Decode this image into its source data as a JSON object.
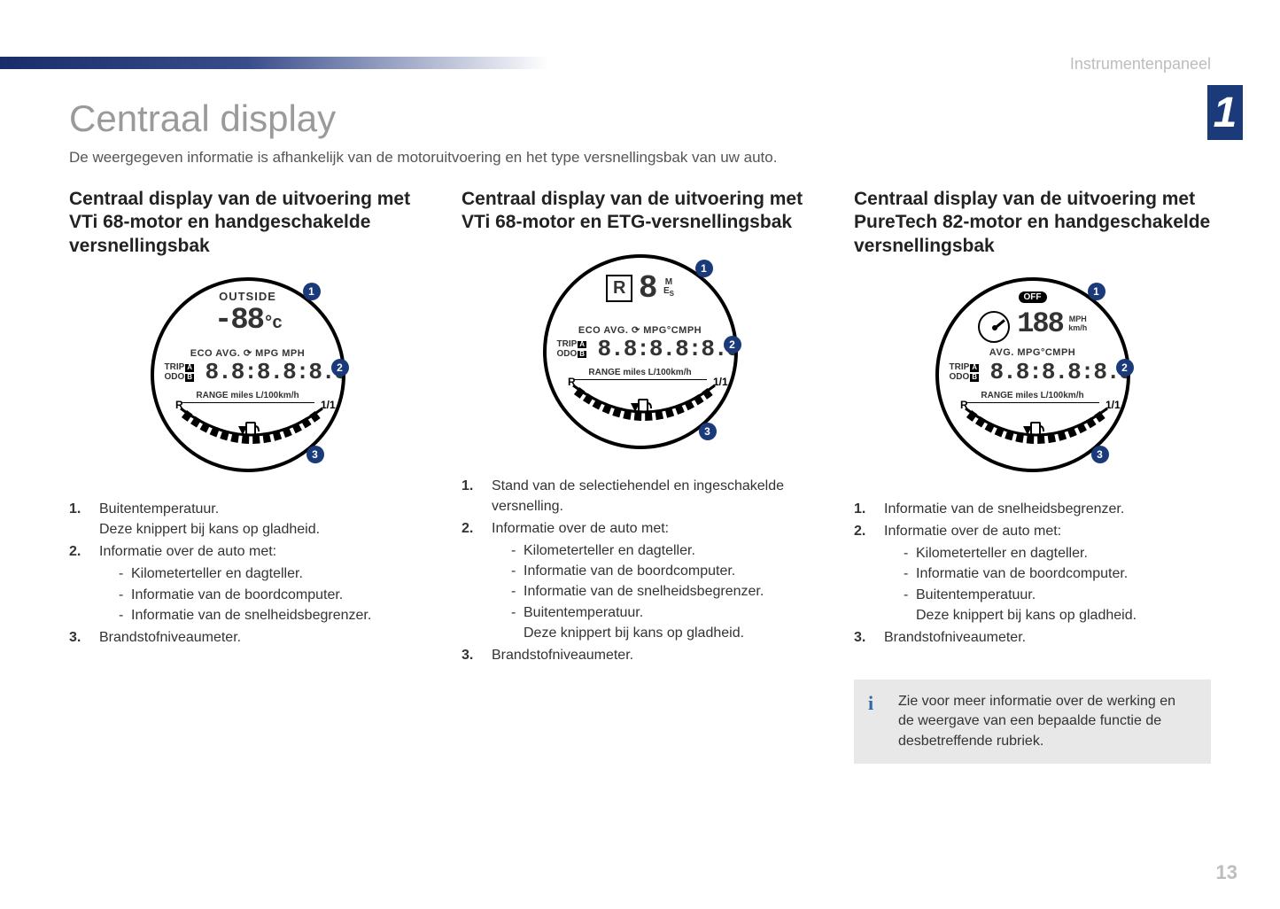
{
  "header": {
    "section_label": "Instrumentenpaneel",
    "chapter_number": "1",
    "footer_page": "13"
  },
  "title": "Centraal display",
  "intro": "De weergegeven informatie is afhankelijk van de motoruitvoering en het type versnellingsbak van uw auto.",
  "columns": [
    {
      "title": "Centraal display van de uitvoering met VTi 68-motor en handgeschakelde versnellingsbak",
      "gauge": {
        "variant": "vti_manual",
        "top_label": "OUTSIDE",
        "temp": "-88",
        "temp_unit": "°c",
        "row2": "ECO AVG. ⟳ MPG MPH",
        "trip_a": "TRIP",
        "trip_a_box": "A",
        "odo_b": "ODO",
        "odo_b_box": "B",
        "digits": "8.8:8.8:8.8",
        "range": "RANGE  miles L/100km/h",
        "fuel_left": "R",
        "fuel_right": "1/1",
        "callouts": [
          "1",
          "2",
          "3"
        ]
      },
      "items": [
        {
          "text": "Buitentemperatuur.",
          "extra": "Deze knippert bij kans op gladheid."
        },
        {
          "text": "Informatie over de auto met:",
          "sub": [
            "Kilometerteller en dagteller.",
            "Informatie van de boordcomputer.",
            "Informatie van de snelheidsbegrenzer."
          ]
        },
        {
          "text": "Brandstofniveaumeter."
        }
      ]
    },
    {
      "title": "Centraal display van de uitvoering met VTi 68-motor en ETG-versnellingsbak",
      "gauge": {
        "variant": "vti_etg",
        "r": "R",
        "lcd": "8",
        "mes": "M\nE\nS",
        "row2": "ECO AVG. ⟳ MPG°CMPH",
        "trip_a": "TRIP",
        "trip_a_box": "A",
        "odo_b": "ODO",
        "odo_b_box": "B",
        "digits": "8.8:8.8:8.8",
        "range": "RANGE  miles L/100km/h",
        "fuel_left": "R",
        "fuel_right": "1/1",
        "callouts": [
          "1",
          "2",
          "3"
        ]
      },
      "items": [
        {
          "text": "Stand van de selectiehendel en ingeschakelde versnelling."
        },
        {
          "text": "Informatie over de auto met:",
          "sub": [
            "Kilometerteller en dagteller.",
            "Informatie van de boordcomputer.",
            "Informatie van de snelheidsbegrenzer.",
            "Buitentemperatuur.\nDeze knippert bij kans op gladheid."
          ]
        },
        {
          "text": "Brandstofniveaumeter."
        }
      ]
    },
    {
      "title": "Centraal display van de uitvoering met PureTech 82-motor en handgeschakelde versnellingsbak",
      "gauge": {
        "variant": "puretech",
        "off": "OFF",
        "speed": "188",
        "speed_unit": "MPH\nkm/h",
        "row2": "AVG.  MPG°CMPH",
        "trip_a": "TRIP",
        "trip_a_box": "A",
        "odo_b": "ODO",
        "odo_b_box": "B",
        "digits": "8.8:8.8:8.8",
        "range": "RANGE  miles L/100km/h",
        "fuel_left": "R",
        "fuel_right": "1/1",
        "callouts": [
          "1",
          "2",
          "3"
        ]
      },
      "items": [
        {
          "text": "Informatie van de snelheidsbegrenzer."
        },
        {
          "text": "Informatie over de auto met:",
          "sub": [
            "Kilometerteller en dagteller.",
            "Informatie van de boordcomputer.",
            "Buitentemperatuur.\nDeze knippert bij kans op gladheid."
          ]
        },
        {
          "text": "Brandstofniveaumeter."
        }
      ],
      "info_box": "Zie voor meer informatie over de werking en de weergave van een bepaalde functie de desbetreffende rubriek."
    }
  ],
  "colors": {
    "accent": "#1a3a7a",
    "header_gradient_start": "#1a2d6b",
    "header_gradient_end": "#ffffff",
    "muted": "#9a9a9a",
    "info_bg": "#e8e8e8",
    "info_icon": "#2a6aa8"
  }
}
